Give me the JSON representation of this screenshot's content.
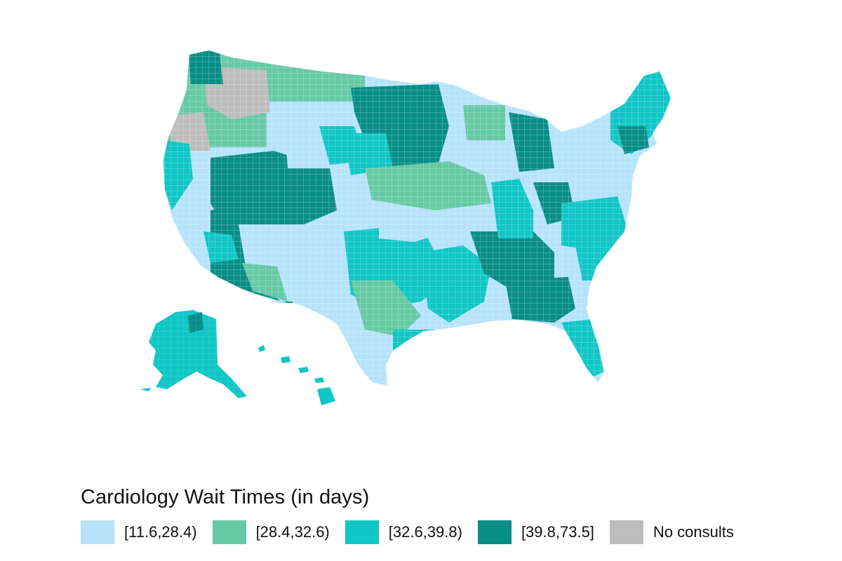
{
  "legend": {
    "title": "Cardiology Wait Times (in days)",
    "items": [
      {
        "label": "[11.6,28.4)",
        "color": "#b6e3fb"
      },
      {
        "label": "[28.4,32.6)",
        "color": "#66c9a5"
      },
      {
        "label": "[32.6,39.8)",
        "color": "#10c6c6"
      },
      {
        "label": "[39.8,73.5]",
        "color": "#088d87"
      },
      {
        "label": "No consults",
        "color": "#bdbdbd"
      }
    ]
  }
}
